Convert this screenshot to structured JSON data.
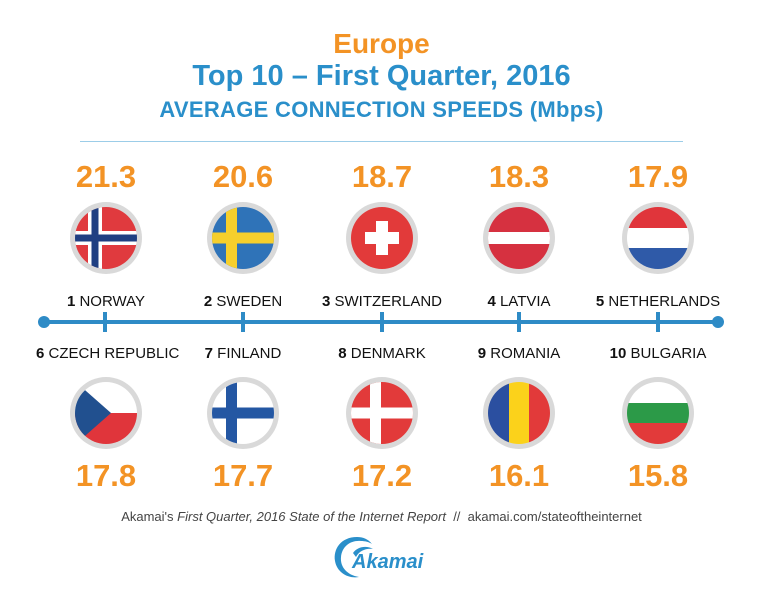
{
  "header": {
    "region": "Europe",
    "title": "Top 10 – First Quarter, 2016",
    "subtitle": "AVERAGE CONNECTION SPEEDS (Mbps)"
  },
  "top_row": [
    {
      "rank": "1",
      "country": "NORWAY",
      "speed": "21.3",
      "flag": "norway-flag-icon"
    },
    {
      "rank": "2",
      "country": "SWEDEN",
      "speed": "20.6",
      "flag": "sweden-flag-icon"
    },
    {
      "rank": "3",
      "country": "SWITZERLAND",
      "speed": "18.7",
      "flag": "switzerland-flag-icon"
    },
    {
      "rank": "4",
      "country": "LATVIA",
      "speed": "18.3",
      "flag": "latvia-flag-icon"
    },
    {
      "rank": "5",
      "country": "NETHERLANDS",
      "speed": "17.9",
      "flag": "netherlands-flag-icon"
    }
  ],
  "bottom_row": [
    {
      "rank": "6",
      "country": "CZECH REPUBLIC",
      "speed": "17.8",
      "flag": "czech-republic-flag-icon"
    },
    {
      "rank": "7",
      "country": "FINLAND",
      "speed": "17.7",
      "flag": "finland-flag-icon"
    },
    {
      "rank": "8",
      "country": "DENMARK",
      "speed": "17.2",
      "flag": "denmark-flag-icon"
    },
    {
      "rank": "9",
      "country": "ROMANIA",
      "speed": "16.1",
      "flag": "romania-flag-icon"
    },
    {
      "rank": "10",
      "country": "BULGARIA",
      "speed": "15.8",
      "flag": "bulgaria-flag-icon"
    }
  ],
  "footer": {
    "source_prefix": "Akamai's ",
    "source_title": "First Quarter, 2016 State of the Internet Report",
    "separator": "  //  ",
    "url": "akamai.com/stateoftheinternet"
  },
  "logo": {
    "text": "Akamai"
  },
  "colors": {
    "orange": "#f39325",
    "blue": "#2a8fca",
    "timeline": "#2e8bc6"
  }
}
